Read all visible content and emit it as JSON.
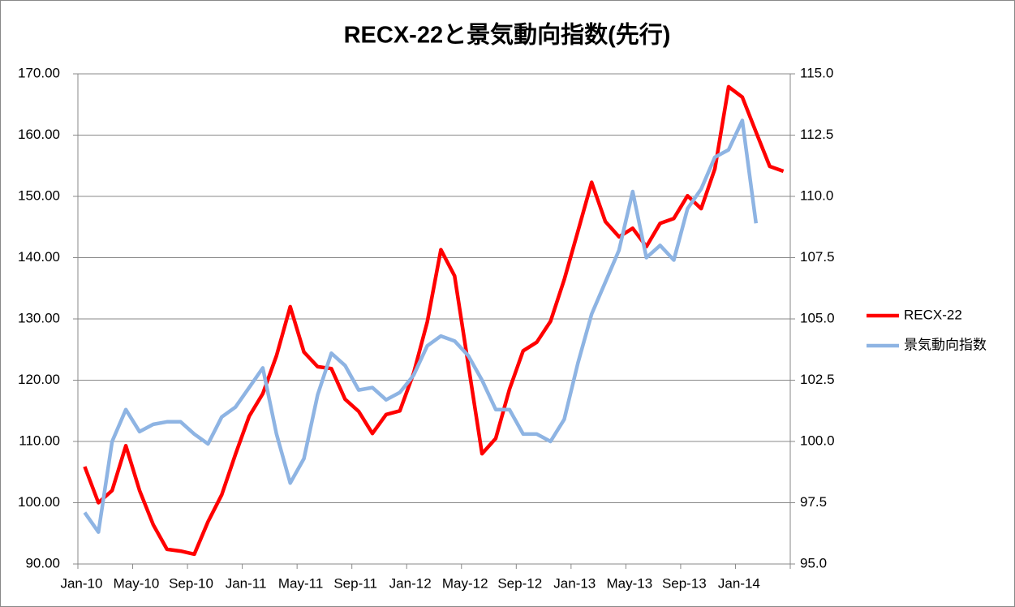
{
  "chart_data": {
    "type": "line",
    "title": "RECX-22と景気動向指数(先行)",
    "categories": [
      "Jan-10",
      null,
      null,
      null,
      "May-10",
      null,
      null,
      null,
      "Sep-10",
      null,
      null,
      null,
      "Jan-11",
      null,
      null,
      null,
      "May-11",
      null,
      null,
      null,
      "Sep-11",
      null,
      null,
      null,
      "Jan-12",
      null,
      null,
      null,
      "May-12",
      null,
      null,
      null,
      "Sep-12",
      null,
      null,
      null,
      "Jan-13",
      null,
      null,
      null,
      "May-13",
      null,
      null,
      null,
      "Sep-13",
      null,
      null,
      null,
      "Jan-14",
      null,
      null,
      null
    ],
    "series": [
      {
        "name": "RECX-22",
        "color": "#ff0000",
        "axis": "y",
        "values": [
          105.9,
          100,
          102,
          109.3,
          102,
          96.4,
          92.4,
          92.1,
          91.6,
          96.9,
          101.3,
          107.9,
          114.1,
          117.8,
          124,
          132,
          124.6,
          122.2,
          121.9,
          116.9,
          114.9,
          111.3,
          114.4,
          115,
          121.1,
          129.5,
          141.3,
          137,
          122.5,
          108,
          110.5,
          118.5,
          124.8,
          126.2,
          129.6,
          136.4,
          144.3,
          152.3,
          145.9,
          143.4,
          144.8,
          141.8,
          145.6,
          146.4,
          150.1,
          148,
          154.5,
          167.9,
          166.2,
          160.5,
          154.9,
          154.1
        ]
      },
      {
        "name": "景気動向指数",
        "color": "#8eb4e3",
        "axis": "y2",
        "values": [
          97.1,
          96.3,
          100,
          101.3,
          100.4,
          100.7,
          100.8,
          100.8,
          100.3,
          99.9,
          101,
          101.4,
          102.2,
          103,
          100.3,
          98.3,
          99.3,
          101.9,
          103.6,
          103.1,
          102.1,
          102.2,
          101.7,
          102,
          102.7,
          103.9,
          104.3,
          104.1,
          103.5,
          102.5,
          101.3,
          101.3,
          100.3,
          100.3,
          100,
          100.9,
          103.2,
          105.2,
          106.5,
          107.8,
          110.2,
          107.5,
          108,
          107.4,
          109.5,
          110.3,
          111.6,
          111.9,
          113.1,
          108.9,
          null,
          null
        ]
      }
    ],
    "ylim": [
      90,
      170
    ],
    "yticks": [
      {
        "value": 90,
        "label": "90.00"
      },
      {
        "value": 100,
        "label": "100.00"
      },
      {
        "value": 110,
        "label": "110.00"
      },
      {
        "value": 120,
        "label": "120.00"
      },
      {
        "value": 130,
        "label": "130.00"
      },
      {
        "value": 140,
        "label": "140.00"
      },
      {
        "value": 150,
        "label": "150.00"
      },
      {
        "value": 160,
        "label": "160.00"
      },
      {
        "value": 170,
        "label": "170.00"
      }
    ],
    "y2lim": [
      95,
      115
    ],
    "y2ticks": [
      {
        "value": 95,
        "label": "95.0"
      },
      {
        "value": 97.5,
        "label": "97.5"
      },
      {
        "value": 100,
        "label": "100.0"
      },
      {
        "value": 102.5,
        "label": "102.5"
      },
      {
        "value": 105,
        "label": "105.0"
      },
      {
        "value": 107.5,
        "label": "107.5"
      },
      {
        "value": 110,
        "label": "110.0"
      },
      {
        "value": 112.5,
        "label": "112.5"
      },
      {
        "value": 115,
        "label": "115.0"
      }
    ],
    "grid": true,
    "legend": "right"
  }
}
